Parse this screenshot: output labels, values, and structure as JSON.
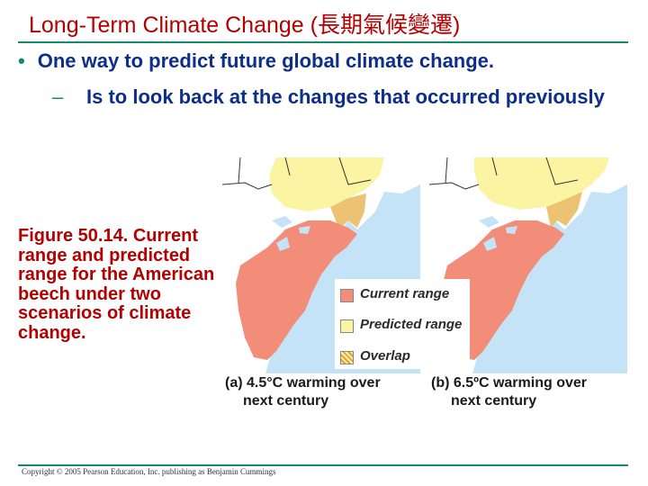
{
  "slide": {
    "title": "Long-Term Climate Change (長期氣候變遷)",
    "bullet": "One way to predict future global climate change.",
    "sub_bullet": "Is to look back at the changes that occurred previously",
    "caption": "Figure 50.14. Current range and predicted range for the American beech under two scenarios of climate change.",
    "copyright": "Copyright © 2005 Pearson Education, Inc. publishing as Benjamin Cummings"
  },
  "legend": {
    "current": "Current range",
    "predicted": "Predicted range",
    "overlap": "Overlap"
  },
  "maps": {
    "a_line1": "(a) 4.5°C warming over",
    "a_line2": "next century",
    "b_line1": "(b) 6.5ºC warming over",
    "b_line2": "next century"
  },
  "colors": {
    "title": "#b30000",
    "text": "#0d2e8a",
    "accent": "#138a6b",
    "water": "#c5e3f7",
    "current_range": "#f28d7a",
    "predicted_range": "#fbf4a2",
    "land": "#ffffff"
  }
}
